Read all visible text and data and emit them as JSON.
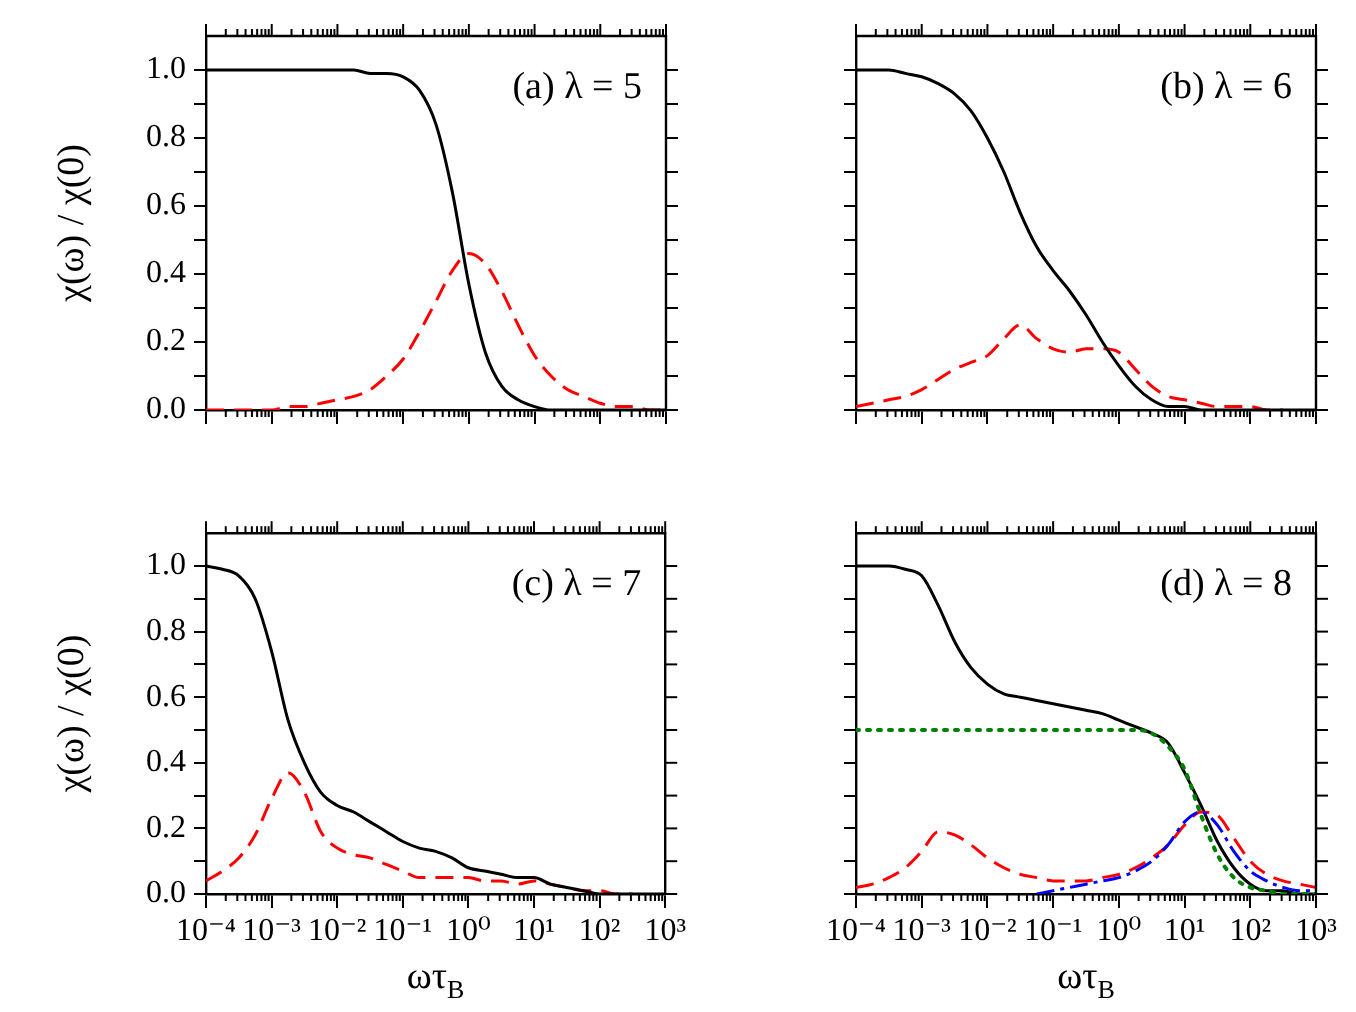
{
  "chart_data": [
    {
      "type": "line",
      "log": "x",
      "tick_labels": "y",
      "ylabel": "χ(ω) / χ(0)",
      "annotations": [
        "(a) λ = 5"
      ],
      "xlim": [
        0.0001,
        1000
      ],
      "ylim": [
        0,
        1.1
      ],
      "xticks": [
        {
          "value": 0.0001,
          "label": null
        },
        {
          "value": 0.001,
          "label": null
        },
        {
          "value": 0.01,
          "label": null
        },
        {
          "value": 0.1,
          "label": null
        },
        {
          "value": 1,
          "label": null
        },
        {
          "value": 10,
          "label": null
        },
        {
          "value": 100,
          "label": null
        },
        {
          "value": 1000,
          "label": null
        }
      ],
      "yticks": [
        {
          "value": 0,
          "label": "0.0"
        },
        {
          "value": 0.1,
          "label": null
        },
        {
          "value": 0.2,
          "label": "0.2"
        },
        {
          "value": 0.3,
          "label": null
        },
        {
          "value": 0.4,
          "label": "0.4"
        },
        {
          "value": 0.5,
          "label": null
        },
        {
          "value": 0.6,
          "label": "0.6"
        },
        {
          "value": 0.7,
          "label": null
        },
        {
          "value": 0.8,
          "label": "0.8"
        },
        {
          "value": 0.9,
          "label": null
        },
        {
          "value": 1,
          "label": "1.0"
        }
      ],
      "x": [
        0.0001,
        0.000178,
        0.000316,
        0.000562,
        0.001,
        0.00178,
        0.00316,
        0.00562,
        0.01,
        0.0178,
        0.0316,
        0.0562,
        0.1,
        0.178,
        0.316,
        0.562,
        1,
        1.78,
        3.16,
        5.62,
        10,
        17.8,
        31.6,
        56.2,
        100,
        178,
        316,
        562,
        1000
      ],
      "series": [
        {
          "color": "#000000",
          "line_style": "solid",
          "values": [
            1,
            1,
            1,
            1,
            1,
            1,
            1,
            1,
            1,
            1,
            0.99,
            0.99,
            0.98,
            0.94,
            0.84,
            0.64,
            0.37,
            0.17,
            0.07,
            0.03,
            0.01,
            0,
            0,
            0,
            0,
            0,
            0,
            0,
            0
          ]
        },
        {
          "color": "#ff0000",
          "line_style": "dashed",
          "values": [
            0,
            0,
            0,
            0,
            0,
            0.01,
            0.01,
            0.02,
            0.03,
            0.04,
            0.06,
            0.1,
            0.15,
            0.23,
            0.32,
            0.41,
            0.46,
            0.43,
            0.35,
            0.25,
            0.16,
            0.1,
            0.06,
            0.04,
            0.02,
            0.01,
            0.01,
            0,
            0
          ]
        }
      ]
    },
    {
      "type": "line",
      "log": "x",
      "tick_labels": false,
      "annotations": [
        "(b) λ = 6"
      ],
      "xlim": [
        0.0001,
        1000
      ],
      "ylim": [
        0,
        1.1
      ],
      "xticks": [
        {
          "value": 0.0001,
          "label": null
        },
        {
          "value": 0.001,
          "label": null
        },
        {
          "value": 0.01,
          "label": null
        },
        {
          "value": 0.1,
          "label": null
        },
        {
          "value": 1,
          "label": null
        },
        {
          "value": 10,
          "label": null
        },
        {
          "value": 100,
          "label": null
        },
        {
          "value": 1000,
          "label": null
        }
      ],
      "yticks": [
        {
          "value": 0,
          "label": null
        },
        {
          "value": 0.1,
          "label": null
        },
        {
          "value": 0.2,
          "label": null
        },
        {
          "value": 0.3,
          "label": null
        },
        {
          "value": 0.4,
          "label": null
        },
        {
          "value": 0.5,
          "label": null
        },
        {
          "value": 0.6,
          "label": null
        },
        {
          "value": 0.7,
          "label": null
        },
        {
          "value": 0.8,
          "label": null
        },
        {
          "value": 0.9,
          "label": null
        },
        {
          "value": 1,
          "label": null
        }
      ],
      "x": [
        0.0001,
        0.000178,
        0.000316,
        0.000562,
        0.001,
        0.00178,
        0.00316,
        0.00562,
        0.01,
        0.0178,
        0.0316,
        0.0562,
        0.1,
        0.178,
        0.316,
        0.562,
        1,
        1.78,
        3.16,
        5.62,
        10,
        17.8,
        31.6,
        56.2,
        100,
        178,
        316,
        562,
        1000
      ],
      "series": [
        {
          "color": "#000000",
          "line_style": "solid",
          "values": [
            1,
            1,
            1,
            0.99,
            0.98,
            0.96,
            0.93,
            0.88,
            0.8,
            0.7,
            0.58,
            0.48,
            0.41,
            0.35,
            0.28,
            0.2,
            0.13,
            0.07,
            0.03,
            0.01,
            0.01,
            0,
            0,
            0,
            0,
            0,
            0,
            0,
            0
          ]
        },
        {
          "color": "#ff0000",
          "line_style": "dashed",
          "values": [
            0.01,
            0.02,
            0.03,
            0.04,
            0.06,
            0.09,
            0.12,
            0.14,
            0.16,
            0.21,
            0.25,
            0.21,
            0.18,
            0.17,
            0.18,
            0.18,
            0.17,
            0.12,
            0.07,
            0.04,
            0.03,
            0.02,
            0.01,
            0.01,
            0.01,
            0,
            0,
            null,
            null
          ]
        }
      ]
    },
    {
      "type": "line",
      "log": "x",
      "xlabel": "ωτ$_{B}$",
      "ylabel": "χ(ω) / χ(0)",
      "annotations": [
        "(c) λ = 7"
      ],
      "xlim": [
        0.0001,
        1000
      ],
      "ylim": [
        0,
        1.1
      ],
      "xticks": [
        {
          "value": 0.0001,
          "label": "10⁻⁴"
        },
        {
          "value": 0.001,
          "label": "10⁻³"
        },
        {
          "value": 0.01,
          "label": "10⁻²"
        },
        {
          "value": 0.1,
          "label": "10⁻¹"
        },
        {
          "value": 1,
          "label": "10⁰"
        },
        {
          "value": 10,
          "label": "10¹"
        },
        {
          "value": 100,
          "label": "10²"
        },
        {
          "value": 1000,
          "label": "10³"
        }
      ],
      "yticks": [
        {
          "value": 0,
          "label": "0.0"
        },
        {
          "value": 0.1,
          "label": null
        },
        {
          "value": 0.2,
          "label": "0.2"
        },
        {
          "value": 0.3,
          "label": null
        },
        {
          "value": 0.4,
          "label": "0.4"
        },
        {
          "value": 0.5,
          "label": null
        },
        {
          "value": 0.6,
          "label": "0.6"
        },
        {
          "value": 0.7,
          "label": null
        },
        {
          "value": 0.8,
          "label": "0.8"
        },
        {
          "value": 0.9,
          "label": null
        },
        {
          "value": 1,
          "label": "1.0"
        }
      ],
      "x": [
        0.0001,
        0.000178,
        0.000316,
        0.000562,
        0.001,
        0.00178,
        0.00316,
        0.00562,
        0.01,
        0.0178,
        0.0316,
        0.0562,
        0.1,
        0.178,
        0.316,
        0.562,
        1,
        1.78,
        3.16,
        5.62,
        10,
        17.8,
        31.6,
        56.2,
        100,
        178,
        316,
        562,
        1000
      ],
      "series": [
        {
          "color": "#000000",
          "line_style": "solid",
          "values": [
            1,
            0.99,
            0.97,
            0.9,
            0.74,
            0.53,
            0.4,
            0.31,
            0.27,
            0.25,
            0.22,
            0.19,
            0.16,
            0.14,
            0.13,
            0.11,
            0.08,
            0.07,
            0.06,
            0.05,
            0.05,
            0.03,
            0.02,
            0.01,
            0,
            0,
            0,
            0,
            0
          ]
        },
        {
          "color": "#ff0000",
          "line_style": "dashed",
          "values": [
            0.04,
            0.07,
            0.11,
            0.18,
            0.29,
            0.37,
            0.31,
            0.19,
            0.14,
            0.12,
            0.11,
            0.09,
            0.07,
            0.05,
            0.05,
            0.05,
            0.05,
            0.04,
            0.04,
            0.03,
            0.04,
            0.03,
            0.02,
            0.01,
            0.01,
            0,
            0,
            null,
            null
          ]
        }
      ]
    },
    {
      "type": "line",
      "log": "x",
      "tick_labels": "x",
      "xlabel": "ωτ$_{B}$",
      "annotations": [
        "(d) λ = 8"
      ],
      "xlim": [
        0.0001,
        1000
      ],
      "ylim": [
        0,
        1.1
      ],
      "xticks": [
        {
          "value": 0.0001,
          "label": "10⁻⁴"
        },
        {
          "value": 0.001,
          "label": "10⁻³"
        },
        {
          "value": 0.01,
          "label": "10⁻²"
        },
        {
          "value": 0.1,
          "label": "10⁻¹"
        },
        {
          "value": 1,
          "label": "10⁰"
        },
        {
          "value": 10,
          "label": "10¹"
        },
        {
          "value": 100,
          "label": "10²"
        },
        {
          "value": 1000,
          "label": "10³"
        }
      ],
      "yticks": [
        {
          "value": 0,
          "label": null
        },
        {
          "value": 0.1,
          "label": null
        },
        {
          "value": 0.2,
          "label": null
        },
        {
          "value": 0.3,
          "label": null
        },
        {
          "value": 0.4,
          "label": null
        },
        {
          "value": 0.5,
          "label": null
        },
        {
          "value": 0.6,
          "label": null
        },
        {
          "value": 0.7,
          "label": null
        },
        {
          "value": 0.8,
          "label": null
        },
        {
          "value": 0.9,
          "label": null
        },
        {
          "value": 1,
          "label": null
        }
      ],
      "x": [
        0.0001,
        0.000178,
        0.000316,
        0.000562,
        0.001,
        0.00178,
        0.00316,
        0.00562,
        0.01,
        0.0178,
        0.0316,
        0.0562,
        0.1,
        0.178,
        0.316,
        0.562,
        1,
        1.78,
        3.16,
        5.62,
        10,
        17.8,
        31.6,
        56.2,
        100,
        178,
        316,
        562,
        1000
      ],
      "series": [
        {
          "color": "#008000",
          "line_style": "dotted",
          "values": [
            0.5,
            0.5,
            0.5,
            0.5,
            0.5,
            0.5,
            0.5,
            0.5,
            0.5,
            0.5,
            0.5,
            0.5,
            0.5,
            0.5,
            0.5,
            0.5,
            0.5,
            0.5,
            0.49,
            0.45,
            0.38,
            0.24,
            0.12,
            0.05,
            0.02,
            0.01,
            0,
            0,
            0
          ]
        },
        {
          "color": "#0000ff",
          "line_style": "dashdot",
          "values": [
            null,
            null,
            null,
            null,
            null,
            null,
            null,
            null,
            null,
            null,
            null,
            0,
            0.01,
            0.02,
            0.03,
            0.04,
            0.05,
            0.07,
            0.1,
            0.15,
            0.22,
            0.25,
            0.21,
            0.13,
            0.07,
            0.04,
            0.02,
            0.01,
            0.01
          ]
        },
        {
          "color": "#ff0000",
          "line_style": "dashed",
          "values": [
            0.02,
            0.03,
            0.05,
            0.08,
            0.13,
            0.19,
            0.18,
            0.15,
            0.11,
            0.08,
            0.06,
            0.05,
            0.04,
            0.04,
            0.04,
            0.05,
            0.06,
            0.08,
            0.11,
            0.15,
            0.21,
            0.25,
            0.24,
            0.17,
            0.1,
            0.06,
            0.04,
            0.03,
            0.02
          ]
        },
        {
          "color": "#000000",
          "line_style": "solid",
          "values": [
            1,
            1,
            1,
            0.99,
            0.97,
            0.88,
            0.77,
            0.69,
            0.64,
            0.61,
            0.6,
            0.59,
            0.58,
            0.57,
            0.56,
            0.55,
            0.53,
            0.51,
            0.49,
            0.46,
            0.37,
            0.27,
            0.16,
            0.08,
            0.03,
            0.01,
            0.01,
            0,
            0
          ]
        }
      ]
    }
  ]
}
